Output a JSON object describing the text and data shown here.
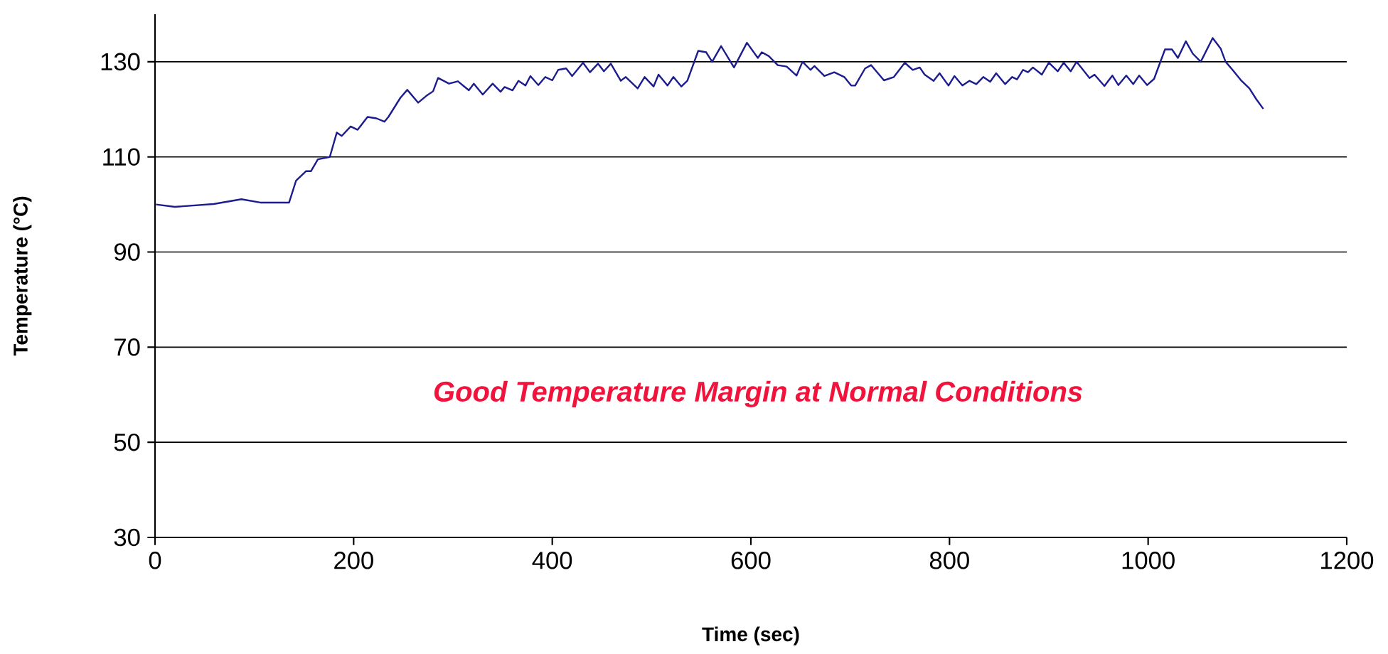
{
  "chart_data": {
    "type": "line",
    "xlabel": "Time (sec)",
    "ylabel": "Temperature (°C)",
    "annotations": [
      "*Good Temperature Margin at Normal Conditions*"
    ],
    "x": [
      1,
      20,
      59,
      87,
      106,
      135,
      142,
      152,
      157,
      164,
      176,
      183,
      188,
      197,
      204,
      214,
      223,
      231,
      235,
      247,
      254,
      265,
      273,
      280,
      285,
      296,
      305,
      316,
      321,
      330,
      340,
      348,
      352,
      360,
      366,
      373,
      378,
      386,
      393,
      400,
      406,
      414,
      420,
      431,
      438,
      446,
      452,
      459,
      469,
      474,
      486,
      493,
      502,
      507,
      516,
      522,
      530,
      536,
      547,
      555,
      561,
      570,
      583,
      596,
      607,
      611,
      618,
      627,
      636,
      646,
      652,
      660,
      664,
      674,
      684,
      694,
      701,
      705,
      715,
      721,
      734,
      744,
      755,
      763,
      770,
      775,
      784,
      790,
      799,
      805,
      813,
      820,
      827,
      834,
      841,
      847,
      856,
      863,
      868,
      874,
      879,
      884,
      893,
      900,
      909,
      915,
      922,
      928,
      941,
      946,
      956,
      964,
      970,
      978,
      985,
      991,
      999,
      1006,
      1012,
      1017,
      1024,
      1030,
      1038,
      1045,
      1053,
      1065,
      1073,
      1078,
      1085,
      1094,
      1102,
      1109,
      1116
    ],
    "series": [
      {
        "color": "#1c1c8e",
        "values": [
          100,
          99.5,
          100.1,
          101.1,
          100.4,
          100.4,
          105,
          107,
          107,
          109.5,
          110,
          115.1,
          114.4,
          116.4,
          115.7,
          118.4,
          118.1,
          117.4,
          118.4,
          122.4,
          124.1,
          121.4,
          122.8,
          123.8,
          126.6,
          125.4,
          125.9,
          124,
          125.4,
          123.1,
          125.4,
          123.7,
          124.7,
          124,
          126,
          125,
          127,
          125.1,
          126.8,
          126.1,
          128.3,
          128.6,
          127,
          129.8,
          127.8,
          129.6,
          128,
          129.6,
          126,
          126.8,
          124.4,
          126.8,
          124.8,
          127.3,
          125,
          126.8,
          124.8,
          126,
          132.3,
          132,
          130,
          133.3,
          128.8,
          134,
          130.8,
          132,
          131.2,
          129.3,
          129,
          127.1,
          130,
          128.3,
          129.1,
          127,
          127.8,
          126.8,
          125,
          125,
          128.6,
          129.3,
          126.1,
          126.8,
          129.8,
          128.3,
          128.8,
          127.3,
          126,
          127.6,
          125,
          127,
          125,
          126,
          125.3,
          126.8,
          125.8,
          127.6,
          125.3,
          126.8,
          126.3,
          128.3,
          127.8,
          128.8,
          127.3,
          129.8,
          128,
          129.8,
          128,
          130,
          126.6,
          127.3,
          124.9,
          127.1,
          125.1,
          127.1,
          125.3,
          127.1,
          125.1,
          126.4,
          129.8,
          132.6,
          132.6,
          130.8,
          134.3,
          131.7,
          130,
          135,
          132.8,
          130,
          128.3,
          126,
          124.4,
          122.1,
          120.1
        ]
      }
    ],
    "xlim": [
      0,
      1200
    ],
    "xticks": [
      0,
      200,
      400,
      600,
      800,
      1000,
      1200
    ],
    "ylim": [
      30,
      140
    ],
    "yticks": [
      30,
      50,
      70,
      90,
      110,
      130
    ],
    "grid": "y"
  }
}
